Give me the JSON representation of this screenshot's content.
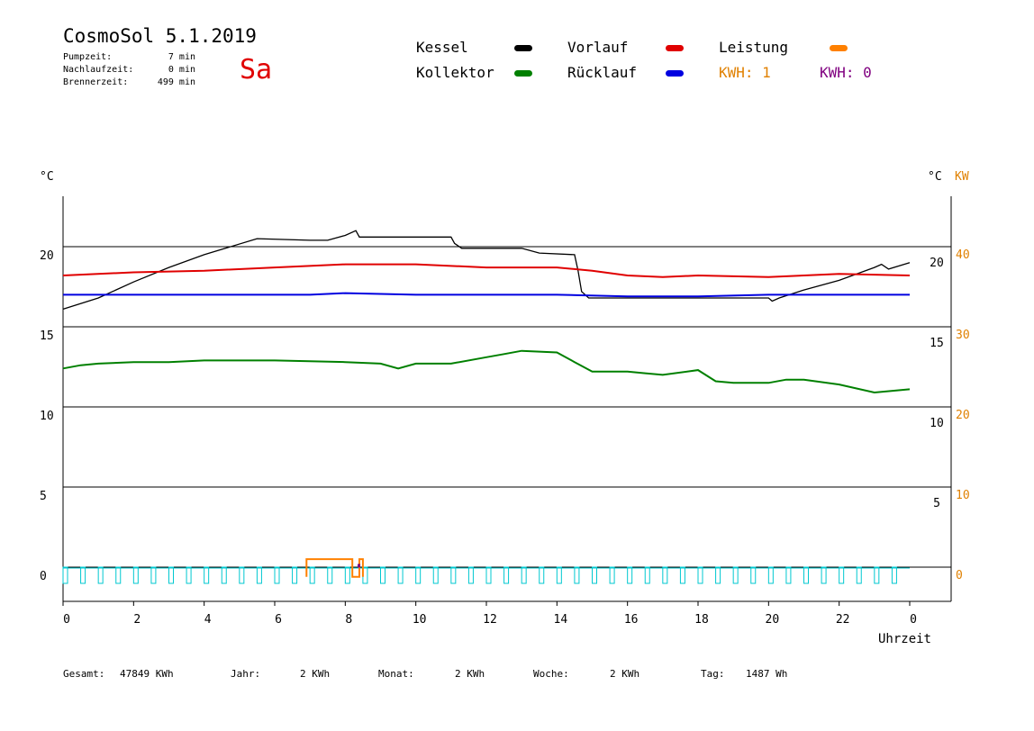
{
  "header": {
    "title": "CosmoSol 5.1.2019",
    "day": "Sa",
    "stats": [
      {
        "label": "Pumpzeit:",
        "value": "7 min"
      },
      {
        "label": "Nachlaufzeit:",
        "value": "0 min"
      },
      {
        "label": "Brennerzeit:",
        "value": "499 min"
      }
    ]
  },
  "legend": [
    {
      "label": "Kessel",
      "color": "#000000"
    },
    {
      "label": "Vorlauf",
      "color": "#e00000"
    },
    {
      "label": "Leistung",
      "color": "#ff8000"
    },
    {
      "label": "Kollektor",
      "color": "#008000"
    },
    {
      "label": "Rücklauf",
      "color": "#0000e0"
    }
  ],
  "kwh": [
    {
      "label": "KWH: 1",
      "color": "#e08000"
    },
    {
      "label": "KWH: 0",
      "color": "#800080"
    }
  ],
  "footer": [
    {
      "label": "Gesamt:",
      "value": "47849 KWh"
    },
    {
      "label": "Jahr:",
      "value": "2 KWh"
    },
    {
      "label": "Monat:",
      "value": "2 KWh"
    },
    {
      "label": "Woche:",
      "value": "2 KWh"
    },
    {
      "label": "Tag:",
      "value": "1487 Wh"
    }
  ],
  "chart_data": {
    "type": "line",
    "xlabel": "Uhrzeit",
    "xlim": [
      0,
      24
    ],
    "x_ticks": [
      "0",
      "2",
      "4",
      "6",
      "8",
      "10",
      "12",
      "14",
      "16",
      "18",
      "20",
      "22",
      "0"
    ],
    "y_left_label": "°C",
    "y_left_ticks": [
      "0",
      "5",
      "10",
      "15",
      "20"
    ],
    "y_inner_ticks": [
      "5",
      "10",
      "15",
      "20"
    ],
    "y_right_label": "°C",
    "y_right_unit": "KW",
    "y_right_ticks": [
      "0",
      "10",
      "20",
      "30",
      "40"
    ],
    "ylim": [
      -1.6,
      23
    ],
    "series": [
      {
        "name": "Kessel",
        "color": "#000000",
        "points": [
          [
            0,
            16.1
          ],
          [
            1,
            16.8
          ],
          [
            2,
            17.8
          ],
          [
            3,
            18.7
          ],
          [
            4,
            19.5
          ],
          [
            5.5,
            20.5
          ],
          [
            7,
            20.4
          ],
          [
            7.5,
            20.4
          ],
          [
            8,
            20.7
          ],
          [
            8.3,
            21
          ],
          [
            8.4,
            20.6
          ],
          [
            11,
            20.6
          ],
          [
            11.1,
            20.2
          ],
          [
            11.3,
            19.9
          ],
          [
            13,
            19.9
          ],
          [
            13.5,
            19.6
          ],
          [
            14.5,
            19.5
          ],
          [
            14.6,
            18.5
          ],
          [
            14.7,
            17.2
          ],
          [
            14.9,
            16.8
          ],
          [
            20,
            16.8
          ],
          [
            20.1,
            16.6
          ],
          [
            20.3,
            16.8
          ],
          [
            21,
            17.3
          ],
          [
            22,
            17.9
          ],
          [
            23,
            18.7
          ],
          [
            23.2,
            18.9
          ],
          [
            23.4,
            18.6
          ],
          [
            24,
            19
          ]
        ]
      },
      {
        "name": "Vorlauf",
        "color": "#e00000",
        "points": [
          [
            0,
            18.2
          ],
          [
            2,
            18.4
          ],
          [
            4,
            18.5
          ],
          [
            6,
            18.7
          ],
          [
            8,
            18.9
          ],
          [
            10,
            18.9
          ],
          [
            12,
            18.7
          ],
          [
            14,
            18.7
          ],
          [
            15,
            18.5
          ],
          [
            16,
            18.2
          ],
          [
            17,
            18.1
          ],
          [
            18,
            18.2
          ],
          [
            20,
            18.1
          ],
          [
            21,
            18.2
          ],
          [
            22,
            18.3
          ],
          [
            24,
            18.2
          ]
        ]
      },
      {
        "name": "Rücklauf",
        "color": "#0000e0",
        "points": [
          [
            0,
            17.0
          ],
          [
            7,
            17.0
          ],
          [
            8,
            17.1
          ],
          [
            10,
            17.0
          ],
          [
            12,
            17.0
          ],
          [
            14,
            17.0
          ],
          [
            16,
            16.9
          ],
          [
            18,
            16.9
          ],
          [
            20,
            17.0
          ],
          [
            22,
            17.0
          ],
          [
            24,
            17.0
          ]
        ]
      },
      {
        "name": "Kollektor",
        "color": "#008000",
        "points": [
          [
            0,
            12.4
          ],
          [
            0.5,
            12.6
          ],
          [
            1,
            12.7
          ],
          [
            2,
            12.8
          ],
          [
            3,
            12.8
          ],
          [
            4,
            12.9
          ],
          [
            6,
            12.9
          ],
          [
            8,
            12.8
          ],
          [
            9,
            12.7
          ],
          [
            9.5,
            12.4
          ],
          [
            10,
            12.7
          ],
          [
            11,
            12.7
          ],
          [
            12,
            13.1
          ],
          [
            12.5,
            13.3
          ],
          [
            13,
            13.5
          ],
          [
            14,
            13.4
          ],
          [
            14.5,
            12.8
          ],
          [
            15,
            12.2
          ],
          [
            16,
            12.2
          ],
          [
            16.5,
            12.1
          ],
          [
            17,
            12.0
          ],
          [
            18,
            12.3
          ],
          [
            18.5,
            11.6
          ],
          [
            19,
            11.5
          ],
          [
            20,
            11.5
          ],
          [
            20.5,
            11.7
          ],
          [
            21,
            11.7
          ],
          [
            22,
            11.4
          ],
          [
            23,
            10.9
          ],
          [
            24,
            11.1
          ]
        ]
      },
      {
        "name": "Leistung",
        "color": "#ff8000",
        "points": [
          [
            6.9,
            -0.6
          ],
          [
            6.9,
            0.5
          ],
          [
            8.1,
            0.5
          ],
          [
            8.2,
            0.5
          ],
          [
            8.2,
            -0.6
          ],
          [
            8.4,
            -0.6
          ],
          [
            8.4,
            0.5
          ],
          [
            8.5,
            0.5
          ],
          [
            8.5,
            -0.6
          ]
        ]
      }
    ]
  }
}
